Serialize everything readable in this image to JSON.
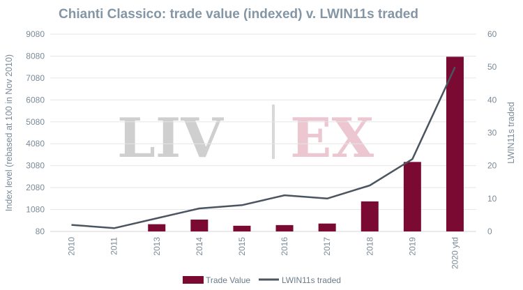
{
  "chart_data": {
    "type": "bar",
    "title": "Chianti Classico: trade value (indexed) v. LWIN11s traded",
    "categories": [
      "2010",
      "2011",
      "2013",
      "2014",
      "2015",
      "2016",
      "2017",
      "2018",
      "2019",
      "2020 ytd"
    ],
    "series": [
      {
        "name": "Trade Value",
        "type": "bar",
        "axis": "left",
        "color": "#7b0a33",
        "values": [
          null,
          null,
          410,
          620,
          340,
          370,
          440,
          1450,
          3250,
          8050
        ]
      },
      {
        "name": "LWIN11s traded",
        "type": "line",
        "axis": "right",
        "color": "#4a5560",
        "values": [
          2,
          1,
          4,
          7,
          8,
          11,
          10,
          14,
          22,
          50
        ]
      }
    ],
    "ylabel": "Index level (rebased at 100 in Nov 2010)",
    "y2label": "LWIN11s traded",
    "ylim": [
      80,
      9080
    ],
    "yticks": [
      "80",
      "1080",
      "2080",
      "3080",
      "4080",
      "5080",
      "6080",
      "7080",
      "8080",
      "9080"
    ],
    "y2lim": [
      0,
      60
    ],
    "y2ticks": [
      "0",
      "10",
      "20",
      "30",
      "40",
      "50",
      "60"
    ],
    "grid": true,
    "legend": "bottom-center"
  },
  "watermark": {
    "left": "LIV",
    "right": "EX",
    "left_color": "#cfcfcf",
    "right_color": "#ecc6d0"
  }
}
